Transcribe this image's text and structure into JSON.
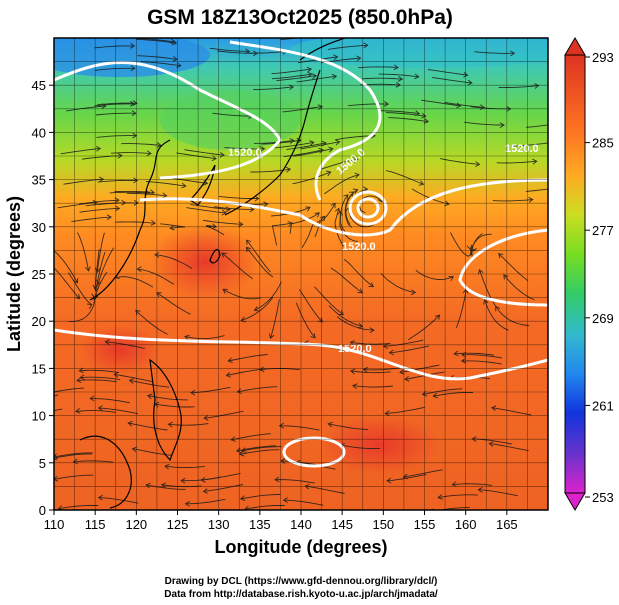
{
  "title": "GSM 18Z13Oct2025 (850.0hPa)",
  "xlabel": "Longitude (degrees)",
  "ylabel": "Latitude (degrees)",
  "credits": [
    "Drawing by DCL (https://www.gfd-dennou.org/library/dcl/)",
    "Data from http://database.rish.kyoto-u.ac.jp/arch/jmadata/"
  ],
  "chart_data": {
    "type": "heatmap",
    "variable_fill": "temperature (K)",
    "contours": "geopotential height (m)",
    "xlim": [
      110,
      170
    ],
    "ylim": [
      0,
      50
    ],
    "xticks": [
      "110",
      "115",
      "120",
      "125",
      "130",
      "135",
      "140",
      "145",
      "150",
      "155",
      "160",
      "165"
    ],
    "yticks": [
      "0",
      "5",
      "10",
      "15",
      "20",
      "25",
      "30",
      "35",
      "40",
      "45"
    ],
    "colorbar": {
      "min": 253,
      "max": 293,
      "ticks": [
        "293",
        "285",
        "277",
        "269",
        "261",
        "253"
      ],
      "colors": [
        "#dd22cc",
        "#6633cc",
        "#1133dd",
        "#2288ee",
        "#33bbcc",
        "#33cc66",
        "#77dd22",
        "#ccdd22",
        "#ffaa22",
        "#ff7722",
        "#ee5522",
        "#dd3322"
      ]
    },
    "contour_labels": [
      "1520.0",
      "1520.0",
      "1520.0",
      "1520.0",
      "1500.0"
    ],
    "grid": true
  }
}
